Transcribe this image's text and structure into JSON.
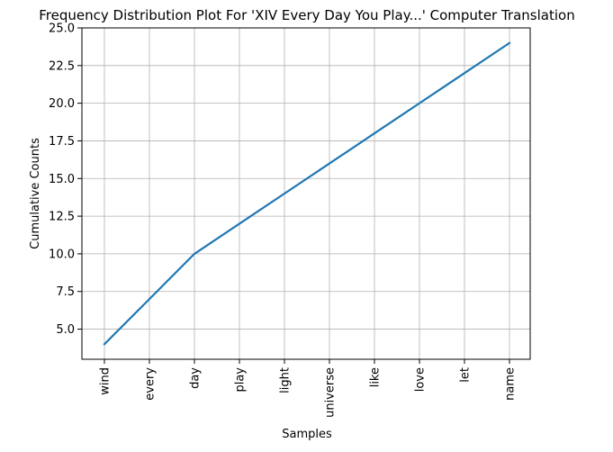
{
  "chart_data": {
    "type": "line",
    "title": "Frequency Distribution Plot For 'XIV Every Day You Play...' Computer Translation",
    "xlabel": "Samples",
    "ylabel": "Cumulative Counts",
    "categories": [
      "wind",
      "every",
      "day",
      "play",
      "light",
      "universe",
      "like",
      "love",
      "let",
      "name"
    ],
    "series": [
      {
        "values": [
          4,
          7,
          10,
          12,
          14,
          16,
          18,
          20,
          22,
          24
        ]
      }
    ],
    "ylim": [
      3,
      25
    ],
    "yticks": [
      5.0,
      7.5,
      10.0,
      12.5,
      15.0,
      17.5,
      20.0,
      22.5,
      25.0
    ],
    "ytick_labels": [
      "5.0",
      "7.5",
      "10.0",
      "12.5",
      "15.0",
      "17.5",
      "20.0",
      "22.5",
      "25.0"
    ],
    "grid": true,
    "line_color": "#1f77b4",
    "grid_color": "#b0b0b0"
  }
}
